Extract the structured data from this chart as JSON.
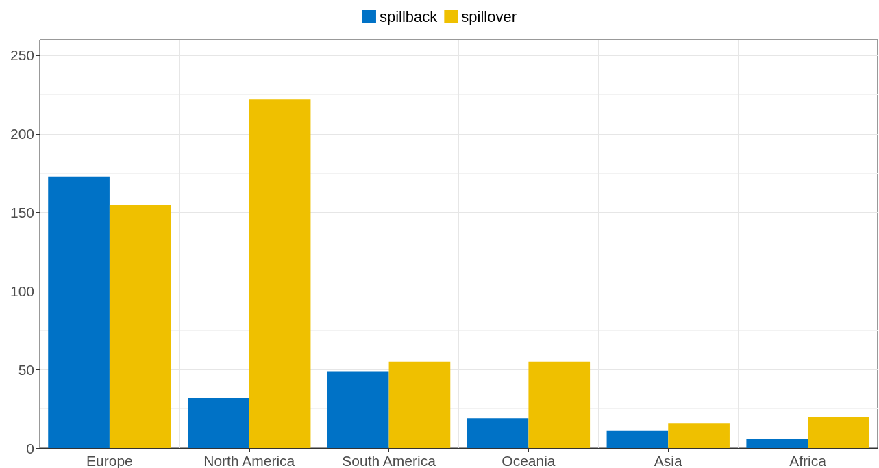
{
  "chart_data": {
    "type": "bar",
    "categories": [
      "Europe",
      "North America",
      "South America",
      "Oceania",
      "Asia",
      "Africa"
    ],
    "series": [
      {
        "name": "spillback",
        "color": "#0072c6",
        "values": [
          173,
          32,
          49,
          19,
          11,
          6
        ]
      },
      {
        "name": "spillover",
        "color": "#efc000",
        "values": [
          155,
          222,
          55,
          55,
          16,
          20
        ]
      }
    ],
    "ylim": [
      0,
      260
    ],
    "yticks": [
      0,
      50,
      100,
      150,
      200,
      250
    ],
    "grid": true,
    "legend": "top"
  }
}
